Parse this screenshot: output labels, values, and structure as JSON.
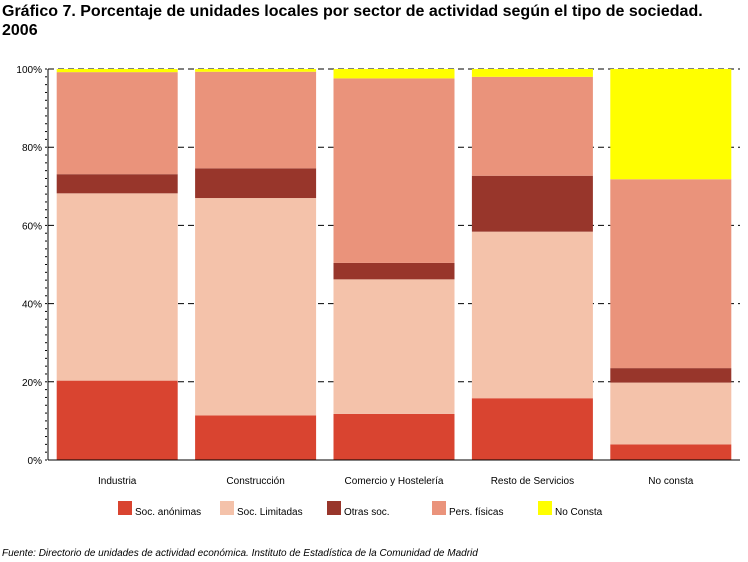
{
  "title": "Gráfico 7. Porcentaje de unidades locales por sector de actividad según el tipo de sociedad. 2006",
  "source": "Fuente: Directorio de unidades de actividad económica. Instituto de Estadística de la Comunidad de Madrid",
  "chart_data": {
    "type": "bar",
    "stacked": true,
    "categories": [
      "Industria",
      "Construcción",
      "Comercio y Hostelería",
      "Resto de Servicios",
      "No consta"
    ],
    "series": [
      {
        "name": "Soc. anónimas",
        "color": "#d94430",
        "values": [
          20.3,
          11.4,
          11.8,
          15.8,
          4.0
        ]
      },
      {
        "name": "Soc. Limitadas",
        "color": "#f4c2aa",
        "values": [
          47.9,
          55.6,
          34.4,
          42.6,
          15.8
        ]
      },
      {
        "name": "Otras soc.",
        "color": "#98362b",
        "values": [
          4.9,
          7.6,
          4.2,
          14.3,
          3.7
        ]
      },
      {
        "name": "Pers. físicas",
        "color": "#ea937b",
        "values": [
          26.1,
          24.7,
          47.2,
          25.3,
          48.3
        ]
      },
      {
        "name": "No Consta",
        "color": "#ffff00",
        "values": [
          0.8,
          0.7,
          2.4,
          2.0,
          28.2
        ]
      }
    ],
    "yticks": [
      "0%",
      "20%",
      "40%",
      "60%",
      "80%",
      "100%"
    ],
    "ylim": [
      0,
      100
    ],
    "grid": true,
    "legend": "bottom"
  }
}
